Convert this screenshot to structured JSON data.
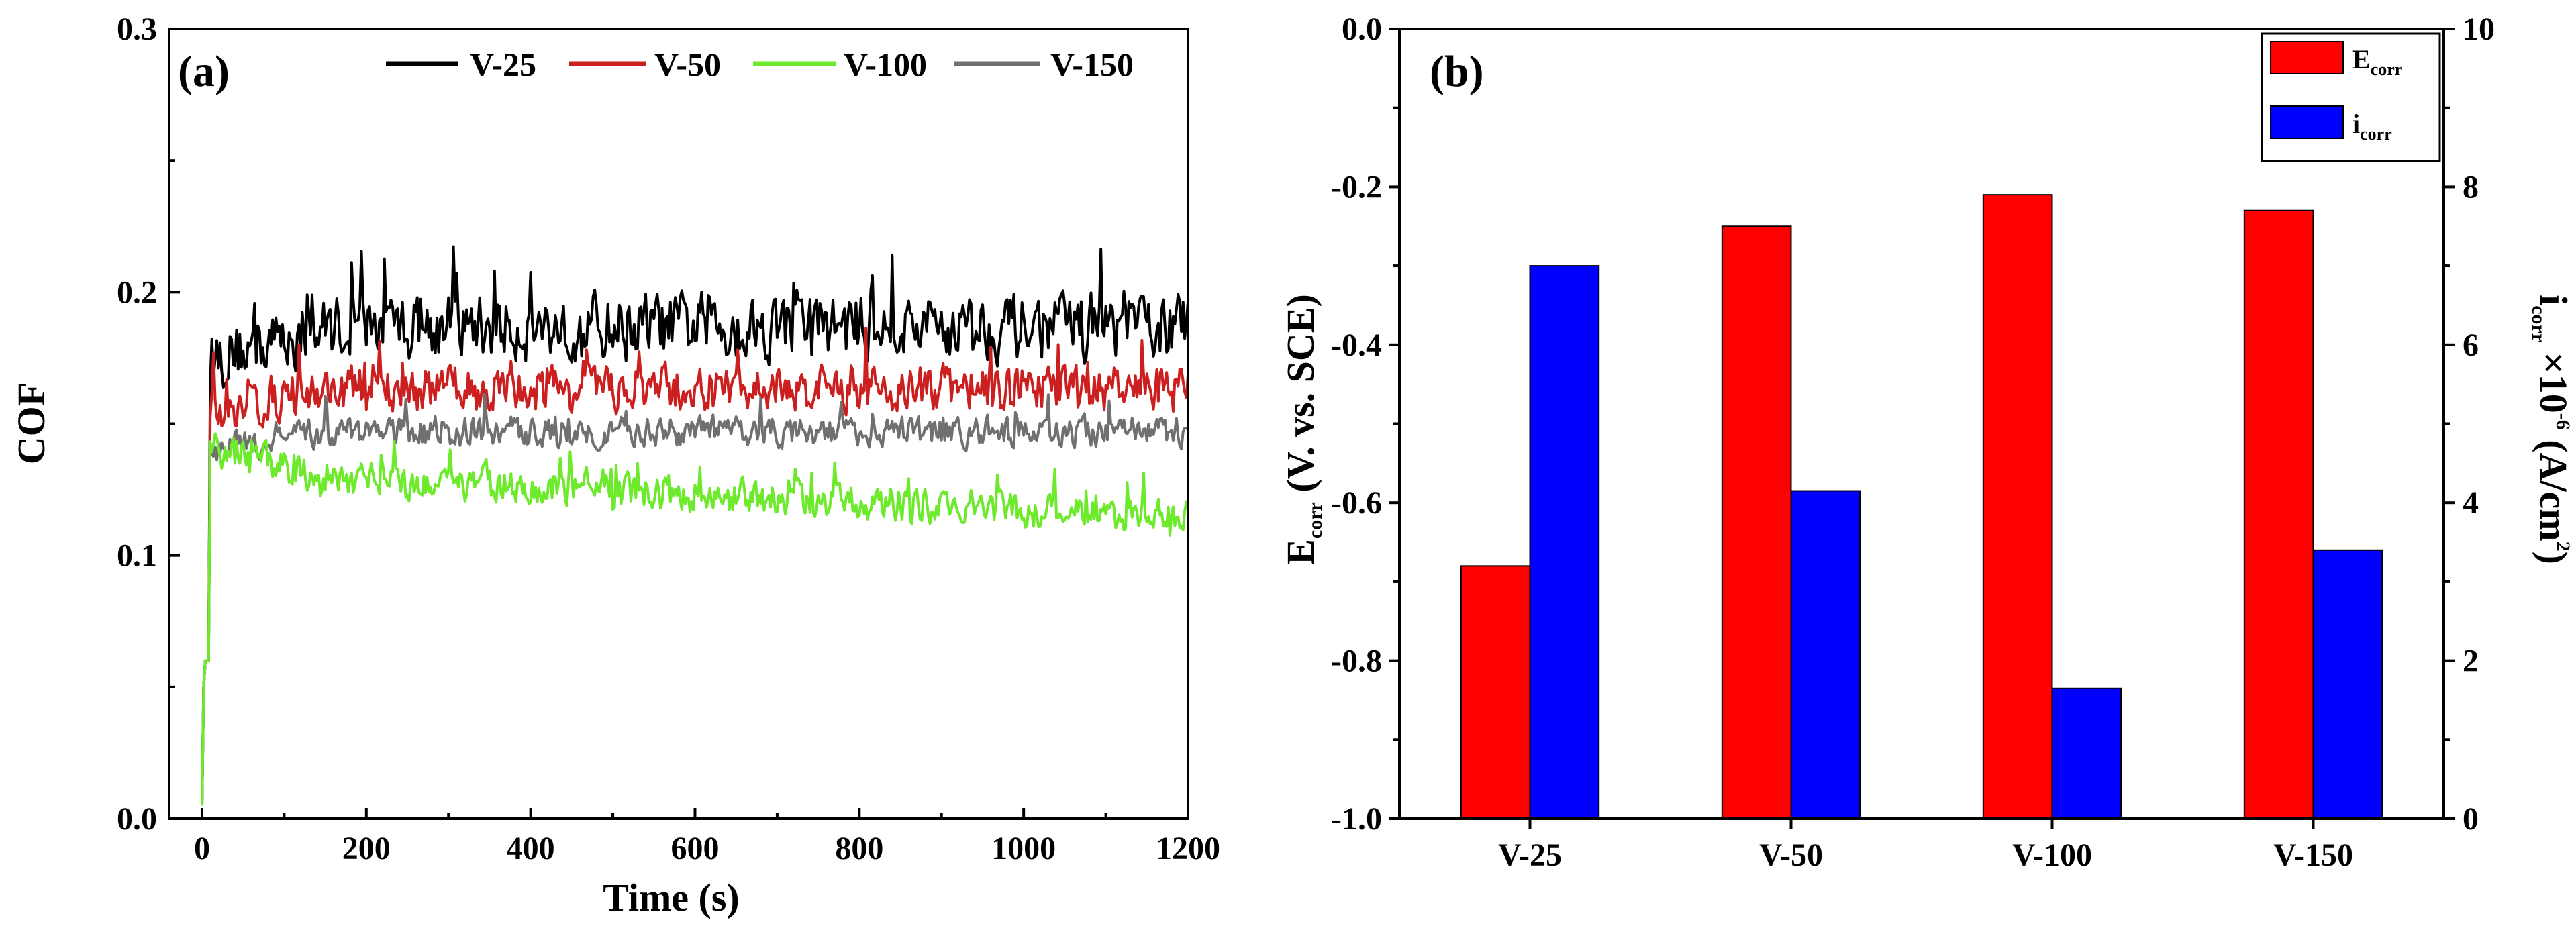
{
  "chart_data": [
    {
      "type": "line",
      "panel_label": "(a)",
      "xlabel": "Time (s)",
      "ylabel": "COF",
      "xlim": [
        -40,
        1200
      ],
      "ylim": [
        0.0,
        0.3
      ],
      "xticks": [
        "0",
        "200",
        "400",
        "600",
        "800",
        "1000",
        "1200"
      ],
      "yticks": [
        "0.0",
        "0.1",
        "0.2",
        "0.3"
      ],
      "legend_position": "top-right",
      "series": [
        {
          "name": "V-25",
          "color": "#000000",
          "mean": 0.187,
          "start": 0.175,
          "noise": 0.011,
          "drift": 0.0
        },
        {
          "name": "V-50",
          "color": "#cc1f1f",
          "mean": 0.163,
          "start": 0.155,
          "noise": 0.008,
          "drift": 0.0
        },
        {
          "name": "V-100",
          "color": "#6dea2c",
          "mean": 0.132,
          "start": 0.14,
          "noise": 0.006,
          "drift": -0.018
        },
        {
          "name": "V-150",
          "color": "#707070",
          "mean": 0.147,
          "start": 0.14,
          "noise": 0.005,
          "drift": 0.0
        }
      ]
    },
    {
      "type": "bar",
      "panel_label": "(b)",
      "categories": [
        "V-25",
        "V-50",
        "V-100",
        "V-150"
      ],
      "ylabel_left_main": "E",
      "ylabel_left_sub": "corr",
      "ylabel_left_rest": " (V. vs. SCE)",
      "ylabel_right_main": "i",
      "ylabel_right_sub": "corr",
      "ylabel_right_mid": " ×10",
      "ylabel_right_sup": "-6",
      "ylabel_right_rest": " (A/cm",
      "ylabel_right_sup2": "2",
      "ylabel_right_end": ")",
      "ylim_left": [
        -1.0,
        0.0
      ],
      "ylim_right": [
        0,
        10
      ],
      "yticks_left": [
        "0.0",
        "-0.2",
        "-0.4",
        "-0.6",
        "-0.8",
        "-1.0"
      ],
      "yticks_right": [
        "0",
        "2",
        "4",
        "6",
        "8",
        "10"
      ],
      "legend_position": "top-right",
      "series": [
        {
          "name_main": "E",
          "name_sub": "corr",
          "axis": "left",
          "color": "#ff0000",
          "values": [
            -0.68,
            -0.25,
            -0.21,
            -0.23
          ]
        },
        {
          "name_main": "i",
          "name_sub": "corr",
          "axis": "right",
          "color": "#0000ff",
          "values": [
            7.0,
            4.15,
            1.65,
            3.4
          ]
        }
      ]
    }
  ]
}
